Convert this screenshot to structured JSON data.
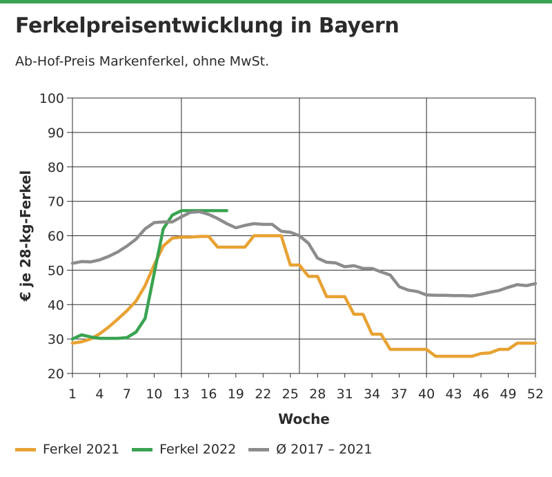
{
  "header": {
    "title": "Ferkelpreisentwicklung in Bayern",
    "subtitle": "Ab-Hof-Preis Markenferkel, ohne MwSt."
  },
  "colors": {
    "accent_bar": "#3aa351",
    "ferkel_2021": "#e8a233",
    "ferkel_2022": "#3aa351",
    "avg": "#8c8c8c",
    "grid": "#2b2b2b",
    "text": "#2b2b2b"
  },
  "chart_data": {
    "type": "line",
    "xlabel": "Woche",
    "ylabel": "€ je 28-kg-Ferkel",
    "xlim": [
      1,
      52
    ],
    "ylim": [
      20,
      100
    ],
    "xticks": [
      1,
      4,
      7,
      10,
      13,
      16,
      19,
      22,
      25,
      28,
      31,
      34,
      37,
      40,
      43,
      46,
      49,
      52
    ],
    "yticks": [
      20,
      30,
      40,
      50,
      60,
      70,
      80,
      90,
      100
    ],
    "vertical_gridlines_at": [
      13,
      26,
      40
    ],
    "grid": "horizontal",
    "legend_position": "bottom",
    "series": [
      {
        "name": "Ferkel 2021",
        "color": "#e8a233",
        "x": [
          1,
          2,
          3,
          4,
          5,
          6,
          7,
          8,
          9,
          10,
          11,
          12,
          13,
          14,
          15,
          16,
          17,
          18,
          19,
          20,
          21,
          22,
          23,
          24,
          25,
          26,
          27,
          28,
          29,
          30,
          31,
          32,
          33,
          34,
          35,
          36,
          37,
          38,
          39,
          40,
          41,
          42,
          43,
          44,
          45,
          46,
          47,
          48,
          49,
          50,
          51,
          52
        ],
        "values": [
          28.8,
          29.2,
          30,
          31.5,
          33.5,
          35.8,
          38.2,
          41,
          45.5,
          51.5,
          57,
          59.3,
          59.6,
          59.6,
          59.8,
          59.8,
          56.7,
          56.7,
          56.7,
          56.7,
          60,
          60,
          60,
          60,
          51.5,
          51.5,
          48.2,
          48.2,
          42.3,
          42.3,
          42.3,
          37.2,
          37.2,
          31.4,
          31.4,
          27,
          27,
          27,
          27,
          27,
          25,
          25,
          25,
          25,
          25,
          25.8,
          26,
          27,
          27,
          28.8,
          28.8,
          28.8
        ]
      },
      {
        "name": "Ferkel 2022",
        "color": "#3aa351",
        "x": [
          1,
          2,
          3,
          4,
          5,
          6,
          7,
          8,
          9,
          10,
          11,
          12,
          13,
          14,
          15,
          16,
          17,
          18
        ],
        "values": [
          30,
          31.2,
          30.6,
          30.2,
          30.2,
          30.2,
          30.4,
          32,
          36,
          49,
          62,
          66,
          67.3,
          67.3,
          67.3,
          67.3,
          67.3,
          67.3
        ]
      },
      {
        "name": "Ø 2017 – 2021",
        "color": "#8c8c8c",
        "x": [
          1,
          2,
          3,
          4,
          5,
          6,
          7,
          8,
          9,
          10,
          11,
          12,
          13,
          14,
          15,
          16,
          17,
          18,
          19,
          20,
          21,
          22,
          23,
          24,
          25,
          26,
          27,
          28,
          29,
          30,
          31,
          32,
          33,
          34,
          35,
          36,
          37,
          38,
          39,
          40,
          41,
          42,
          43,
          44,
          45,
          46,
          47,
          48,
          49,
          50,
          51,
          52
        ],
        "values": [
          52,
          52.5,
          52.4,
          53,
          54,
          55.3,
          57,
          59,
          62,
          63.8,
          64,
          64,
          65.5,
          66.8,
          67,
          66.2,
          65,
          63.5,
          62.3,
          63,
          63.5,
          63.3,
          63.3,
          61.3,
          61,
          60,
          57.8,
          53.5,
          52.3,
          52.1,
          51,
          51.3,
          50.5,
          50.5,
          49.5,
          48.6,
          45.2,
          44.2,
          43.8,
          42.8,
          42.7,
          42.7,
          42.6,
          42.6,
          42.5,
          43,
          43.6,
          44.1,
          45,
          45.8,
          45.5,
          46.1
        ]
      }
    ]
  }
}
